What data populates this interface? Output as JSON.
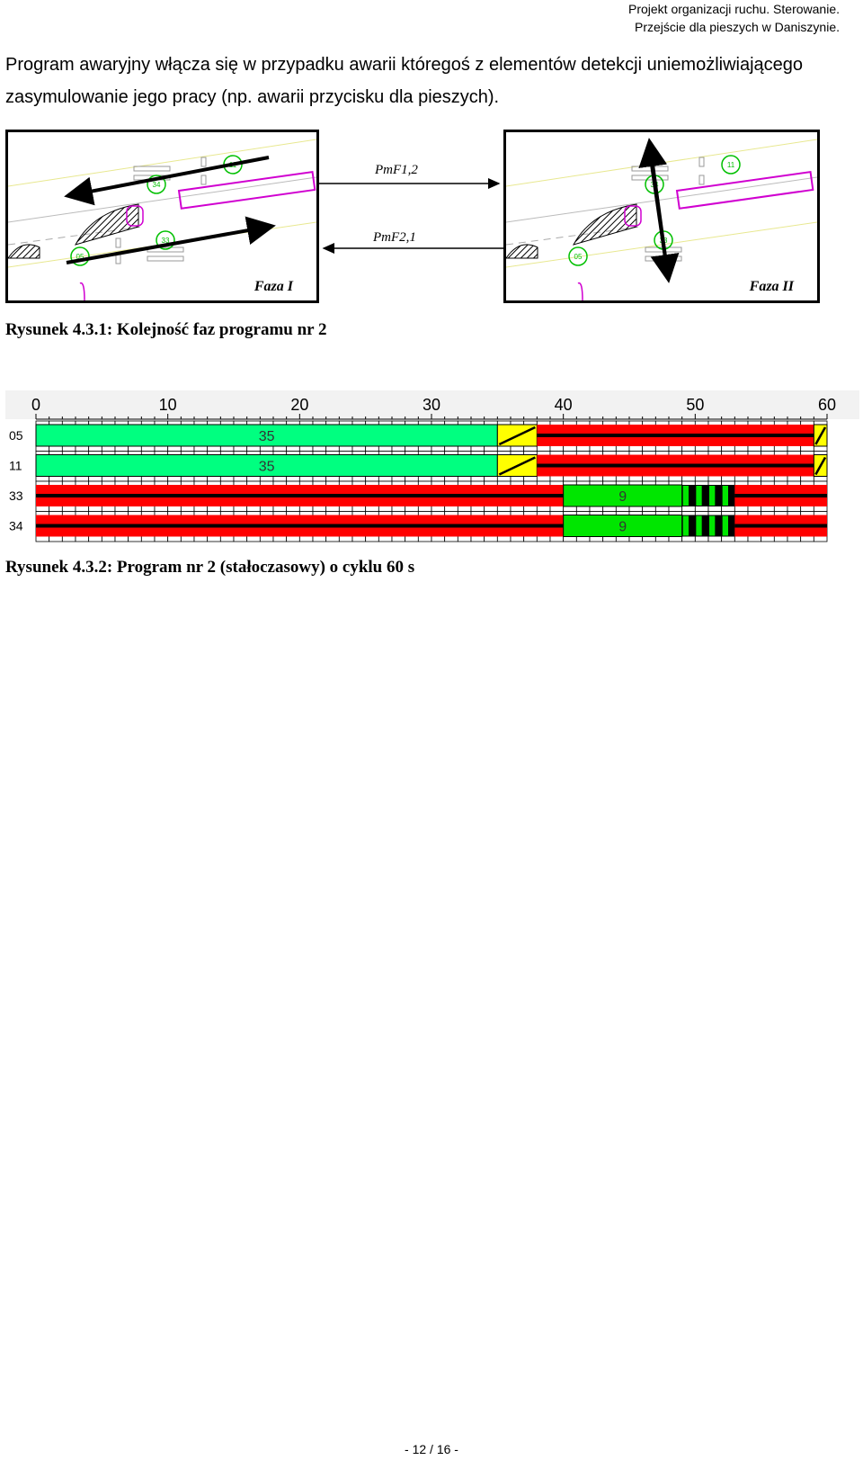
{
  "header": {
    "line1": "Projekt organizacji ruchu. Sterowanie.",
    "line2": "Przejście dla pieszych w Daniszynie."
  },
  "paragraph": "Program awaryjny włącza się w przypadku awarii któregoś z elementów detekcji uniemożliwiającego zasymulowanie jego pracy (np. awarii przycisku dla pieszych).",
  "figure1": {
    "phase1_label": "Faza I",
    "phase2_label": "Faza II",
    "transition_1_2": "PmF1,2",
    "transition_2_1": "PmF2,1",
    "phase1_signal_labels": [
      "05",
      "11",
      "33",
      "34"
    ],
    "phase2_signal_labels": [
      "05",
      "11",
      "33",
      "34"
    ],
    "caption": "Rysunek 4.3.1: Kolejność faz programu nr 2"
  },
  "figure2": {
    "caption": "Rysunek 4.3.2: Program nr 2 (stałoczasowy) o cyklu 60 s",
    "axis_ticks": [
      0,
      10,
      20,
      30,
      40,
      50,
      60
    ],
    "cycle": 60,
    "colors": {
      "green": "#00FF80",
      "green_ped": "#00E600",
      "red": "#FF0000",
      "yellow": "#FFFF00"
    },
    "rows": [
      {
        "label": "05",
        "segments": [
          {
            "state": "green",
            "start": 0,
            "end": 35,
            "text": "35"
          },
          {
            "state": "yellow",
            "start": 35,
            "end": 38
          },
          {
            "state": "red",
            "start": 38,
            "end": 59
          },
          {
            "state": "red-yellow",
            "start": 59,
            "end": 60
          }
        ]
      },
      {
        "label": "11",
        "segments": [
          {
            "state": "green",
            "start": 0,
            "end": 35,
            "text": "35"
          },
          {
            "state": "yellow",
            "start": 35,
            "end": 38
          },
          {
            "state": "red",
            "start": 38,
            "end": 59
          },
          {
            "state": "red-yellow",
            "start": 59,
            "end": 60
          }
        ]
      },
      {
        "label": "33",
        "segments": [
          {
            "state": "red",
            "start": 0,
            "end": 40
          },
          {
            "state": "green",
            "start": 40,
            "end": 49,
            "text": "9"
          },
          {
            "state": "green-flashing",
            "start": 49,
            "end": 53
          },
          {
            "state": "red",
            "start": 53,
            "end": 60
          }
        ]
      },
      {
        "label": "34",
        "segments": [
          {
            "state": "red",
            "start": 0,
            "end": 40
          },
          {
            "state": "green",
            "start": 40,
            "end": 49,
            "text": "9"
          },
          {
            "state": "green-flashing",
            "start": 49,
            "end": 53
          },
          {
            "state": "red",
            "start": 53,
            "end": 60
          }
        ]
      }
    ]
  },
  "page_number": "- 12 / 16 -"
}
